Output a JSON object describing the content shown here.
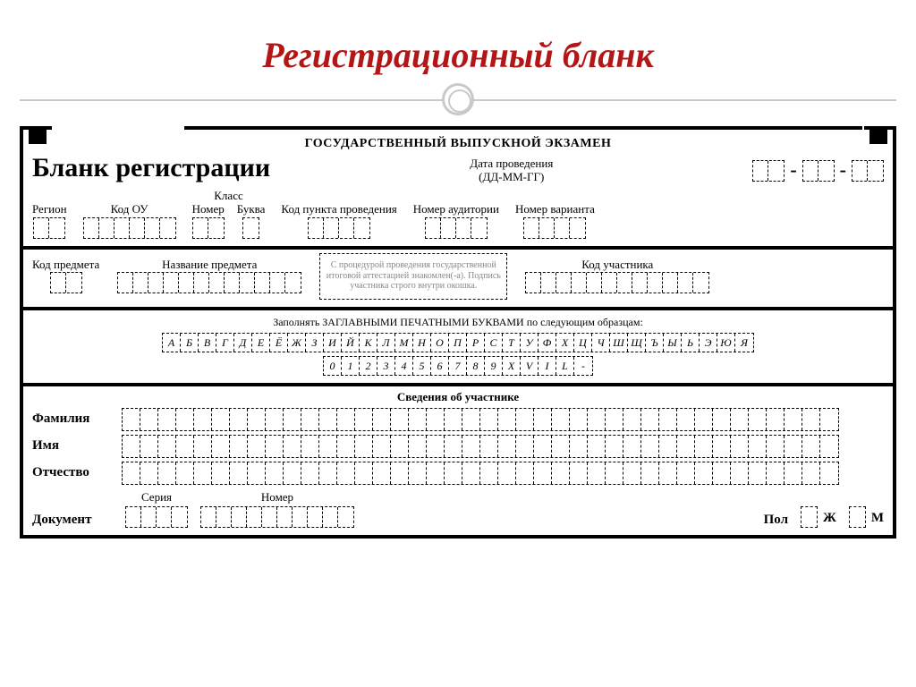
{
  "slide": {
    "title": "Регистрационный бланк"
  },
  "form": {
    "header_line": "ГОСУДАРСТВЕННЫЙ ВЫПУСКНОЙ ЭКЗАМЕН",
    "blank_title": "Бланк регистрации",
    "date": {
      "label_top": "Дата проведения",
      "label_format": "(ДД-ММ-ГГ)"
    },
    "fields": {
      "region": "Регион",
      "kod_ou": "Код ОУ",
      "klass": "Класс",
      "nomer": "Номер",
      "bukva": "Буква",
      "kod_punkta": "Код пункта проведения",
      "nomer_aud": "Номер аудитории",
      "nomer_var": "Номер варианта",
      "kod_predmeta": "Код предмета",
      "nazvanie_predmeta": "Название предмета",
      "kod_uchastnika": "Код участника"
    },
    "procedure_note": "С процедурой проведения государственной итоговой аттестацией знакомлен(-а). Подпись участника строго внутри окошка.",
    "instruction": "Заполнять  ЗАГЛАВНЫМИ ПЕЧАТНЫМИ БУКВАМИ по следующим образцам:",
    "sample_letters": [
      "А",
      "Б",
      "В",
      "Г",
      "Д",
      "Е",
      "Ё",
      "Ж",
      "З",
      "И",
      "Й",
      "К",
      "Л",
      "М",
      "Н",
      "О",
      "П",
      "Р",
      "С",
      "Т",
      "У",
      "Ф",
      "Х",
      "Ц",
      "Ч",
      "Ш",
      "Щ",
      "Ъ",
      "Ы",
      "Ь",
      "Э",
      "Ю",
      "Я"
    ],
    "sample_digits": [
      "0",
      "1",
      "2",
      "3",
      "4",
      "5",
      "6",
      "7",
      "8",
      "9",
      "X",
      "V",
      "I",
      "L",
      "-"
    ],
    "section_participant": "Сведения об участнике",
    "fio": {
      "familiya": "Фамилия",
      "imya": "Имя",
      "otchestvo": "Отчество"
    },
    "document": {
      "label": "Документ",
      "seria": "Серия",
      "nomer": "Номер"
    },
    "pol": {
      "label": "Пол",
      "zh": "Ж",
      "m": "М"
    }
  },
  "style": {
    "title_color": "#b31616",
    "divider_color": "#c9c9c9",
    "border_color": "#000000",
    "background": "#ffffff",
    "fio_cell_count": 40,
    "row_counts": {
      "region": 2,
      "kod_ou": 6,
      "klass_nomer": 2,
      "klass_bukva": 1,
      "kod_punkta": 4,
      "nomer_aud": 4,
      "nomer_var": 4,
      "date_dd": 2,
      "date_mm": 2,
      "date_gg": 2,
      "kod_predmeta": 2,
      "nazvanie_predmeta": 12,
      "kod_uchastnika": 12,
      "doc_seria": 4,
      "doc_nomer": 10
    }
  }
}
